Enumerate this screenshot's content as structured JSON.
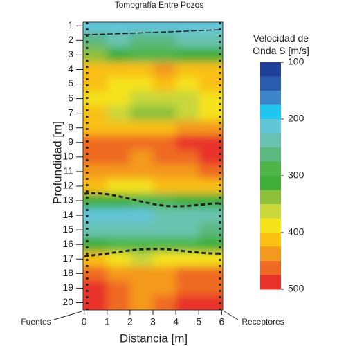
{
  "chart_data": {
    "type": "heatmap",
    "title": "Tomografía Entre Pozos",
    "xlabel": "Distancia [m]",
    "ylabel": "Profundidad [m]",
    "x": [
      0.5,
      1.5,
      2.5,
      3.5,
      4.5,
      5.5
    ],
    "y": [
      1,
      2,
      3,
      4,
      5,
      6,
      7,
      8,
      9,
      10,
      11,
      12,
      13,
      14,
      15,
      16,
      17,
      18,
      19,
      20
    ],
    "values": [
      [
        210,
        210,
        215,
        215,
        210,
        210
      ],
      [
        250,
        240,
        250,
        255,
        245,
        240
      ],
      [
        330,
        300,
        290,
        295,
        300,
        310
      ],
      [
        420,
        410,
        420,
        425,
        415,
        420
      ],
      [
        400,
        395,
        390,
        400,
        395,
        405
      ],
      [
        385,
        380,
        360,
        360,
        370,
        385
      ],
      [
        400,
        360,
        330,
        330,
        350,
        395
      ],
      [
        420,
        420,
        410,
        415,
        425,
        430
      ],
      [
        470,
        465,
        460,
        470,
        475,
        480
      ],
      [
        460,
        450,
        445,
        455,
        470,
        490
      ],
      [
        440,
        435,
        430,
        440,
        445,
        450
      ],
      [
        400,
        390,
        395,
        400,
        405,
        400
      ],
      [
        310,
        300,
        290,
        295,
        300,
        305
      ],
      [
        220,
        220,
        215,
        225,
        230,
        240
      ],
      [
        225,
        230,
        225,
        235,
        245,
        255
      ],
      [
        300,
        290,
        280,
        275,
        285,
        300
      ],
      [
        400,
        385,
        370,
        380,
        390,
        395
      ],
      [
        450,
        445,
        440,
        445,
        450,
        455
      ],
      [
        485,
        450,
        435,
        440,
        460,
        470
      ],
      [
        480,
        455,
        440,
        450,
        480,
        490
      ]
    ],
    "xlim": [
      -0.05,
      6.05
    ],
    "ylim": [
      20.5,
      0.75
    ],
    "xticks": [
      0,
      1,
      2,
      3,
      4,
      5,
      6
    ],
    "yticks": [
      1,
      2,
      3,
      4,
      5,
      6,
      7,
      8,
      9,
      10,
      11,
      12,
      13,
      14,
      15,
      16,
      17,
      18,
      19,
      20
    ],
    "colorbar_title": "Velocidad de Onda S [m/s]",
    "clim": [
      100,
      500
    ],
    "cticks": [
      100,
      200,
      300,
      400,
      500
    ],
    "colors": [
      "#1f3f99",
      "#2a5cae",
      "#3a86c8",
      "#1fc6ef",
      "#63c5d8",
      "#6ac3b0",
      "#5bb87f",
      "#4fb548",
      "#3fae3a",
      "#8cc03b",
      "#c8d73a",
      "#f4e21a",
      "#f9bf13",
      "#f49a1e",
      "#ef6a24",
      "#e8312a"
    ],
    "annotations": [
      "Fuentes",
      "Receptores"
    ]
  }
}
